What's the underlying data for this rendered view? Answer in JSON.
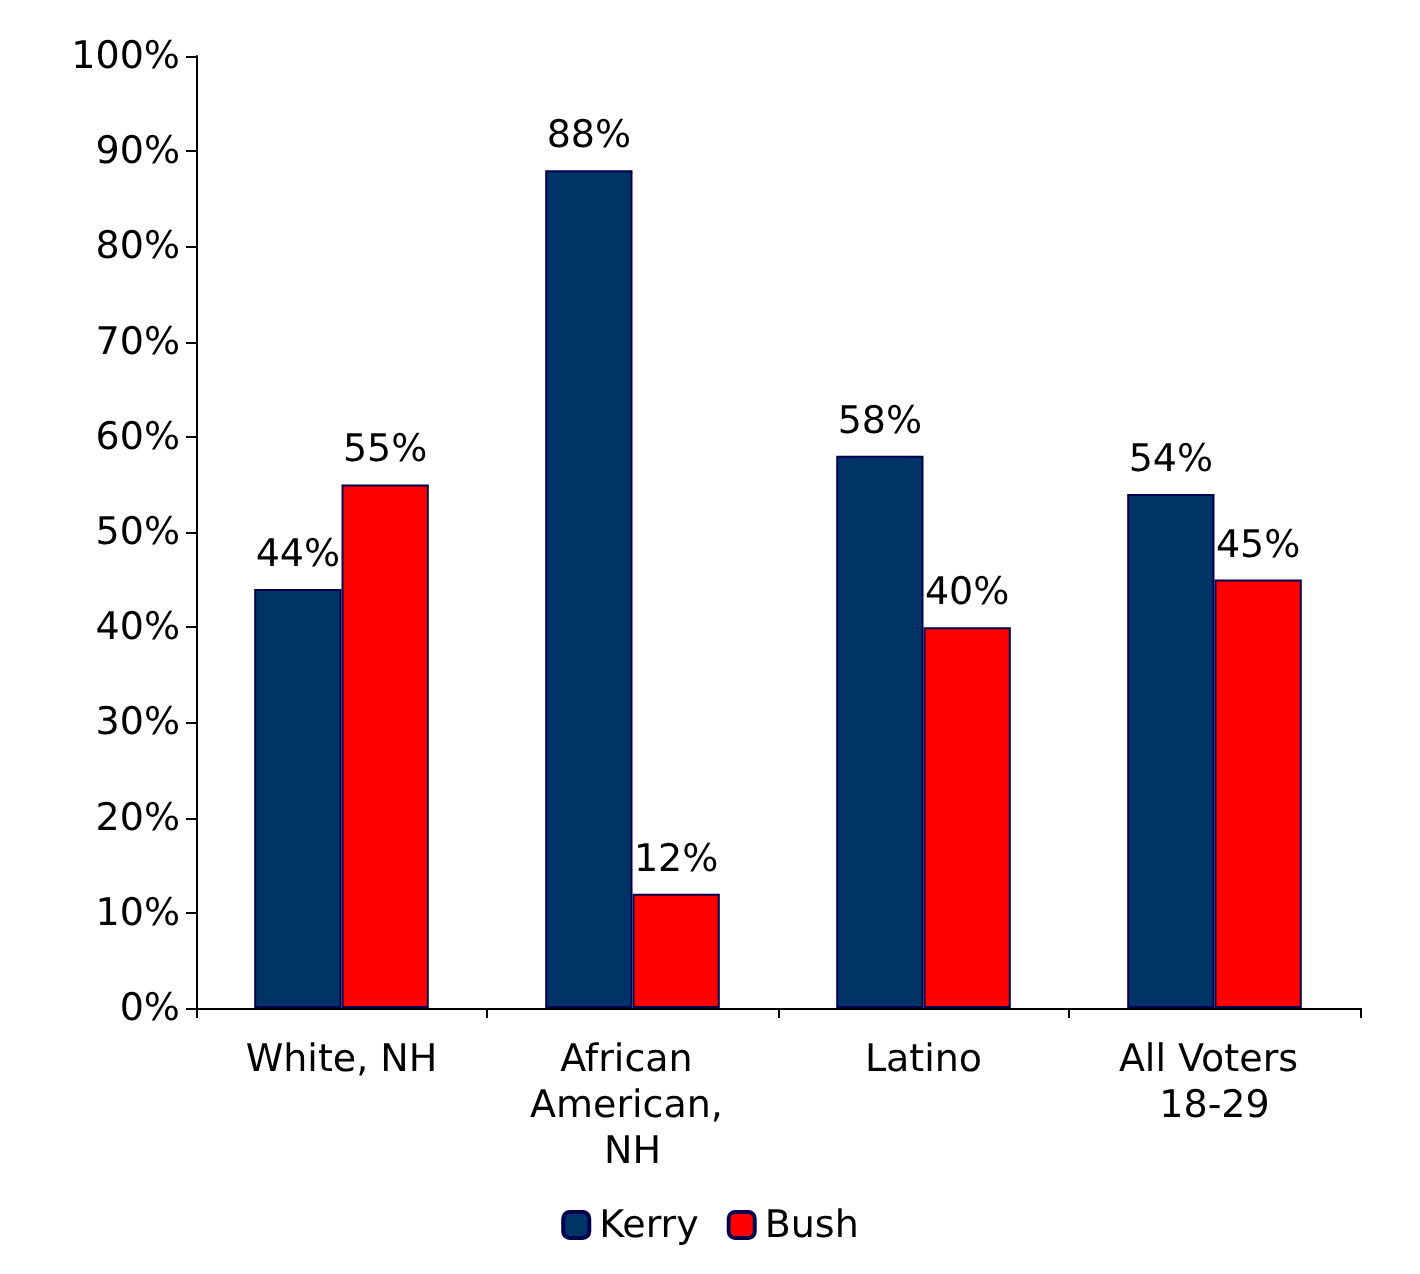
{
  "chart_data": {
    "type": "bar",
    "categories": [
      "White, NH",
      "African American, NH",
      "Latino",
      "All Voters 18-29"
    ],
    "series": [
      {
        "name": "Kerry",
        "color": "#003366",
        "values": [
          44,
          88,
          58,
          54
        ],
        "value_labels": [
          "44%",
          "88%",
          "58%",
          "54%"
        ]
      },
      {
        "name": "Bush",
        "color": "#ff0000",
        "values": [
          55,
          12,
          40,
          45
        ],
        "value_labels": [
          "55%",
          "12%",
          "40%",
          "45%"
        ]
      }
    ],
    "ylim": [
      0,
      100
    ],
    "yticks": [
      {
        "value": 0,
        "label": "0%"
      },
      {
        "value": 10,
        "label": "10%"
      },
      {
        "value": 20,
        "label": "20%"
      },
      {
        "value": 30,
        "label": "30%"
      },
      {
        "value": 40,
        "label": "40%"
      },
      {
        "value": 50,
        "label": "50%"
      },
      {
        "value": 60,
        "label": "60%"
      },
      {
        "value": 70,
        "label": "70%"
      },
      {
        "value": 80,
        "label": "80%"
      },
      {
        "value": 90,
        "label": "90%"
      },
      {
        "value": 100,
        "label": "100%"
      }
    ],
    "grid": false,
    "legend": "bottom"
  }
}
